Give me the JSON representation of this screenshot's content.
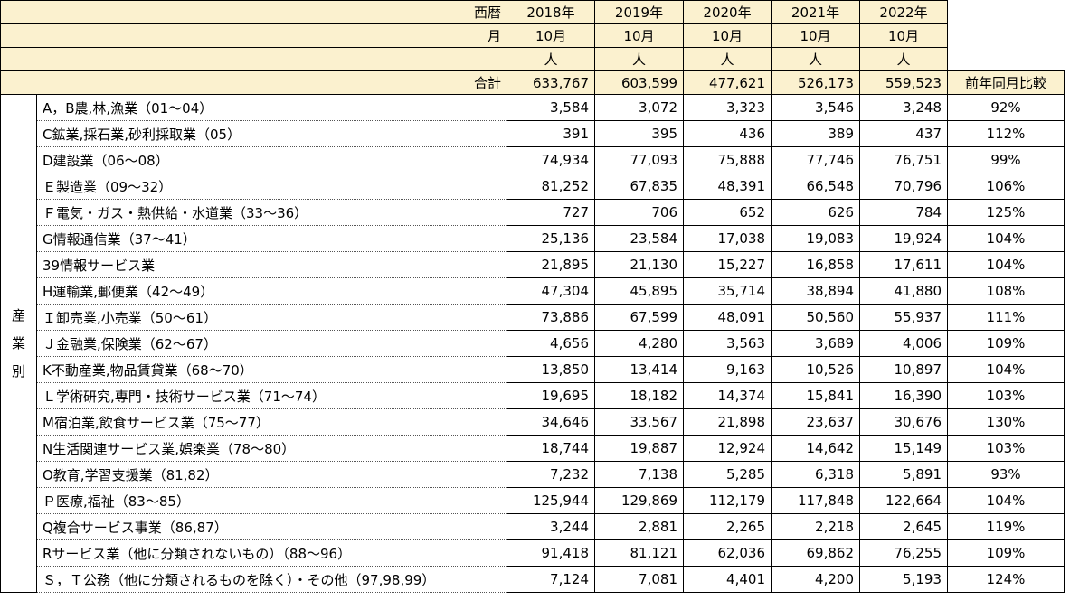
{
  "header": {
    "era_label": "西暦",
    "month_label": "月",
    "total_label": "合計",
    "yoy_label": "前年同月比較",
    "years": [
      "2018年",
      "2019年",
      "2020年",
      "2021年",
      "2022年"
    ],
    "months": [
      "10月",
      "10月",
      "10月",
      "10月",
      "10月"
    ],
    "units": [
      "人",
      "人",
      "人",
      "人",
      "人"
    ],
    "totals": [
      "633,767",
      "603,599",
      "477,621",
      "526,173",
      "559,523"
    ]
  },
  "side_label": [
    "産",
    "業",
    "別"
  ],
  "rows": [
    {
      "name": "A，B農,林,漁業（01～04）",
      "v": [
        "3,584",
        "3,072",
        "3,323",
        "3,546",
        "3,248"
      ],
      "pct": "92%"
    },
    {
      "name": "C鉱業,採石業,砂利採取業（05）",
      "v": [
        "391",
        "395",
        "436",
        "389",
        "437"
      ],
      "pct": "112%"
    },
    {
      "name": "D建設業（06～08）",
      "v": [
        "74,934",
        "77,093",
        "75,888",
        "77,746",
        "76,751"
      ],
      "pct": "99%"
    },
    {
      "name": "Ｅ製造業（09～32）",
      "v": [
        "81,252",
        "67,835",
        "48,391",
        "66,548",
        "70,796"
      ],
      "pct": "106%"
    },
    {
      "name": "Ｆ電気・ガス・熱供給・水道業（33～36）",
      "v": [
        "727",
        "706",
        "652",
        "626",
        "784"
      ],
      "pct": "125%"
    },
    {
      "name": "G情報通信業（37～41）",
      "v": [
        "25,136",
        "23,584",
        "17,038",
        "19,083",
        "19,924"
      ],
      "pct": "104%"
    },
    {
      "name": "39情報サービス業",
      "v": [
        "21,895",
        "21,130",
        "15,227",
        "16,858",
        "17,611"
      ],
      "pct": "104%"
    },
    {
      "name": "H運輸業,郵便業（42～49）",
      "v": [
        "47,304",
        "45,895",
        "35,714",
        "38,894",
        "41,880"
      ],
      "pct": "108%"
    },
    {
      "name": "Ｉ卸売業,小売業（50～61）",
      "v": [
        "73,886",
        "67,599",
        "48,091",
        "50,560",
        "55,937"
      ],
      "pct": "111%"
    },
    {
      "name": "Ｊ金融業,保険業（62～67）",
      "v": [
        "4,656",
        "4,280",
        "3,563",
        "3,689",
        "4,006"
      ],
      "pct": "109%"
    },
    {
      "name": "K不動産業,物品賃貸業（68～70）",
      "v": [
        "13,850",
        "13,414",
        "9,163",
        "10,526",
        "10,897"
      ],
      "pct": "104%"
    },
    {
      "name": "Ｌ学術研究,専門・技術サービス業（71～74）",
      "v": [
        "19,695",
        "18,182",
        "14,374",
        "15,841",
        "16,390"
      ],
      "pct": "103%"
    },
    {
      "name": "M宿泊業,飲食サービス業（75～77）",
      "v": [
        "34,646",
        "33,567",
        "21,898",
        "23,637",
        "30,676"
      ],
      "pct": "130%"
    },
    {
      "name": "N生活関連サービス業,娯楽業（78～80）",
      "v": [
        "18,744",
        "19,887",
        "12,924",
        "14,642",
        "15,149"
      ],
      "pct": "103%"
    },
    {
      "name": "O教育,学習支援業（81,82）",
      "v": [
        "7,232",
        "7,138",
        "5,285",
        "6,318",
        "5,891"
      ],
      "pct": "93%"
    },
    {
      "name": "Ｐ医療,福祉（83～85）",
      "v": [
        "125,944",
        "129,869",
        "112,179",
        "117,848",
        "122,664"
      ],
      "pct": "104%"
    },
    {
      "name": "Q複合サービス事業（86,87）",
      "v": [
        "3,244",
        "2,881",
        "2,265",
        "2,218",
        "2,645"
      ],
      "pct": "119%"
    },
    {
      "name": "Rサービス業（他に分類されないもの）（88～96）",
      "v": [
        "91,418",
        "81,121",
        "62,036",
        "69,862",
        "76,255"
      ],
      "pct": "109%"
    },
    {
      "name": "Ｓ，Ｔ公務（他に分類されるものを除く）・その他（97,98,99）",
      "v": [
        "7,124",
        "7,081",
        "4,401",
        "4,200",
        "5,193"
      ],
      "pct": "124%"
    }
  ],
  "colors": {
    "header_bg": "#fbf1cf",
    "border": "#000000"
  }
}
